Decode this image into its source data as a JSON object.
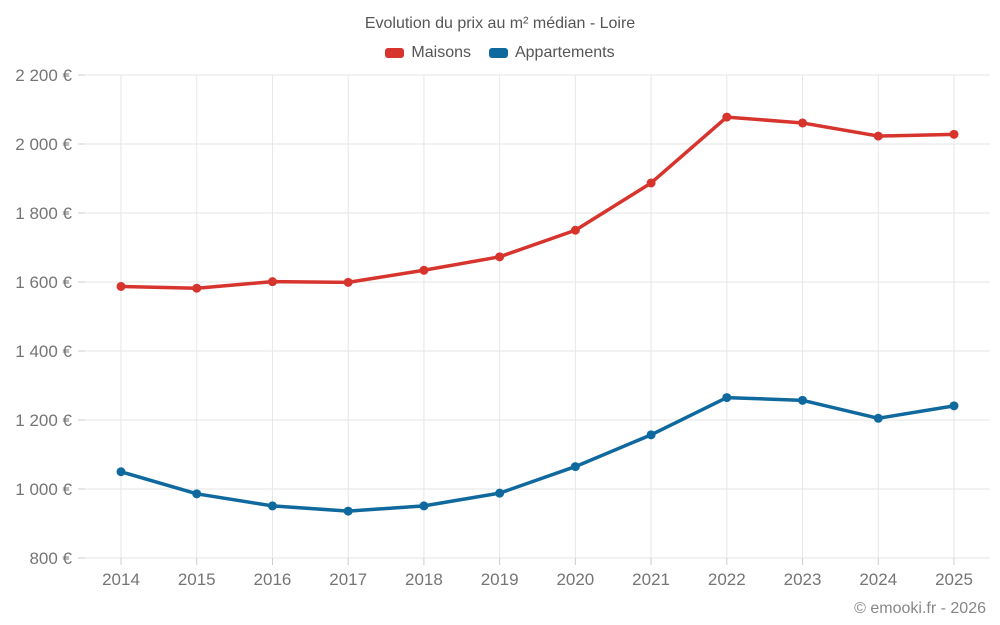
{
  "title": "Evolution du prix au m² médian - Loire",
  "footer": "© emooki.fr - 2026",
  "legend": [
    {
      "label": "Maisons",
      "color": "#d7342e"
    },
    {
      "label": "Appartements",
      "color": "#10699e"
    }
  ],
  "chart_data": {
    "type": "line",
    "title": "Evolution du prix au m² médian - Loire",
    "xlabel": "",
    "ylabel": "",
    "x": [
      2014,
      2015,
      2016,
      2017,
      2018,
      2019,
      2020,
      2021,
      2022,
      2023,
      2024,
      2025
    ],
    "series": [
      {
        "name": "Maisons",
        "color": "#d7342e",
        "values": [
          1587,
          1582,
          1601,
          1599,
          1634,
          1673,
          1750,
          1887,
          2078,
          2061,
          2023,
          2028
        ]
      },
      {
        "name": "Appartements",
        "color": "#10699e",
        "values": [
          1050,
          986,
          951,
          936,
          951,
          988,
          1065,
          1157,
          1265,
          1257,
          1205,
          1241
        ]
      }
    ],
    "ylim": [
      800,
      2200
    ],
    "y_ticks": [
      {
        "value": 800,
        "label": "800 €"
      },
      {
        "value": 1000,
        "label": "1 000 €"
      },
      {
        "value": 1200,
        "label": "1 200 €"
      },
      {
        "value": 1400,
        "label": "1 400 €"
      },
      {
        "value": 1600,
        "label": "1 600 €"
      },
      {
        "value": 1800,
        "label": "1 800 €"
      },
      {
        "value": 2000,
        "label": "2 000 €"
      },
      {
        "value": 2200,
        "label": "2 200 €"
      }
    ],
    "grid": true,
    "grid_color": "#e6e6e6",
    "tick_color": "#cccccc",
    "axis_text_color": "#757575",
    "legend_position": "top"
  }
}
